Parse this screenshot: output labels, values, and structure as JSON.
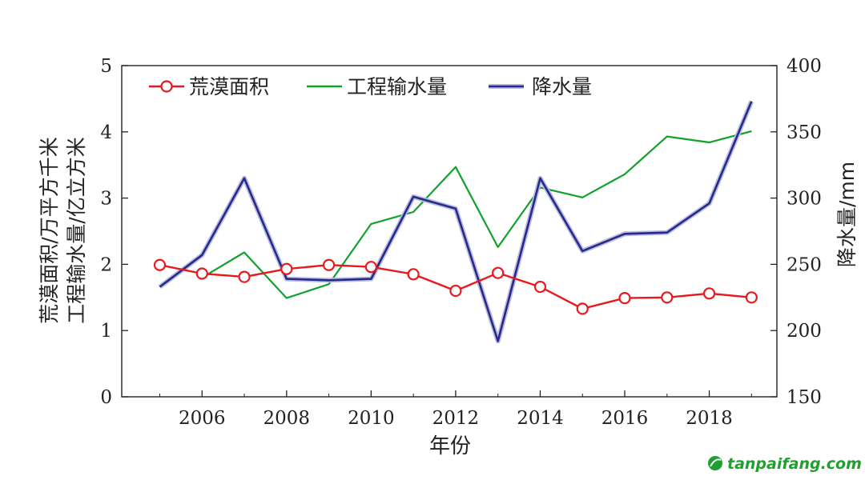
{
  "chart_data": {
    "type": "line",
    "x": [
      2005,
      2006,
      2007,
      2008,
      2009,
      2010,
      2011,
      2012,
      2013,
      2014,
      2015,
      2016,
      2017,
      2018,
      2019
    ],
    "xlabel": "年份",
    "xticks": [
      2006,
      2008,
      2010,
      2012,
      2014,
      2016,
      2018
    ],
    "xlim": [
      2004.1,
      2019.6
    ],
    "ylabel_left_line1": "荒漠面积/万平方千米",
    "ylabel_left_line2": "工程输水量/亿立方米",
    "ylim_left": [
      0,
      5
    ],
    "yticks_left": [
      0,
      1,
      2,
      3,
      4,
      5
    ],
    "ylabel_right": "降水量/mm",
    "ylim_right": [
      150,
      400
    ],
    "yticks_right": [
      150,
      200,
      250,
      300,
      350,
      400
    ],
    "legend_position": "top-left",
    "grid": false,
    "series": [
      {
        "name": "荒漠面积",
        "axis": "left",
        "color": "#e8191c",
        "marker": "circle",
        "x": [
          2005,
          2006,
          2007,
          2008,
          2009,
          2010,
          2011,
          2012,
          2013,
          2014,
          2015,
          2016,
          2017,
          2018,
          2019
        ],
        "values": [
          1.99,
          1.86,
          1.81,
          1.93,
          1.99,
          1.96,
          1.85,
          1.6,
          1.87,
          1.66,
          1.33,
          1.49,
          1.5,
          1.56,
          1.5
        ]
      },
      {
        "name": "工程输水量",
        "axis": "left",
        "color": "#12a12c",
        "marker": "none",
        "x": [
          2006,
          2007,
          2008,
          2009,
          2010,
          2011,
          2012,
          2013,
          2014,
          2015,
          2016,
          2017,
          2018,
          2019
        ],
        "values": [
          1.8,
          2.18,
          1.49,
          1.7,
          2.61,
          2.79,
          3.47,
          2.26,
          3.16,
          3.01,
          3.36,
          3.93,
          3.84,
          4.01
        ]
      },
      {
        "name": "降水量",
        "axis": "right",
        "color": "#262a8c",
        "marker": "none",
        "x": [
          2005,
          2006,
          2007,
          2008,
          2009,
          2010,
          2011,
          2012,
          2013,
          2014,
          2015,
          2016,
          2017,
          2018,
          2019
        ],
        "values": [
          233,
          257,
          315,
          239,
          238,
          239,
          301,
          292,
          192,
          315,
          260,
          273,
          274,
          296,
          373
        ]
      }
    ]
  },
  "watermark": {
    "text": "tanpaifang.com",
    "color": "#1e9f2e"
  }
}
